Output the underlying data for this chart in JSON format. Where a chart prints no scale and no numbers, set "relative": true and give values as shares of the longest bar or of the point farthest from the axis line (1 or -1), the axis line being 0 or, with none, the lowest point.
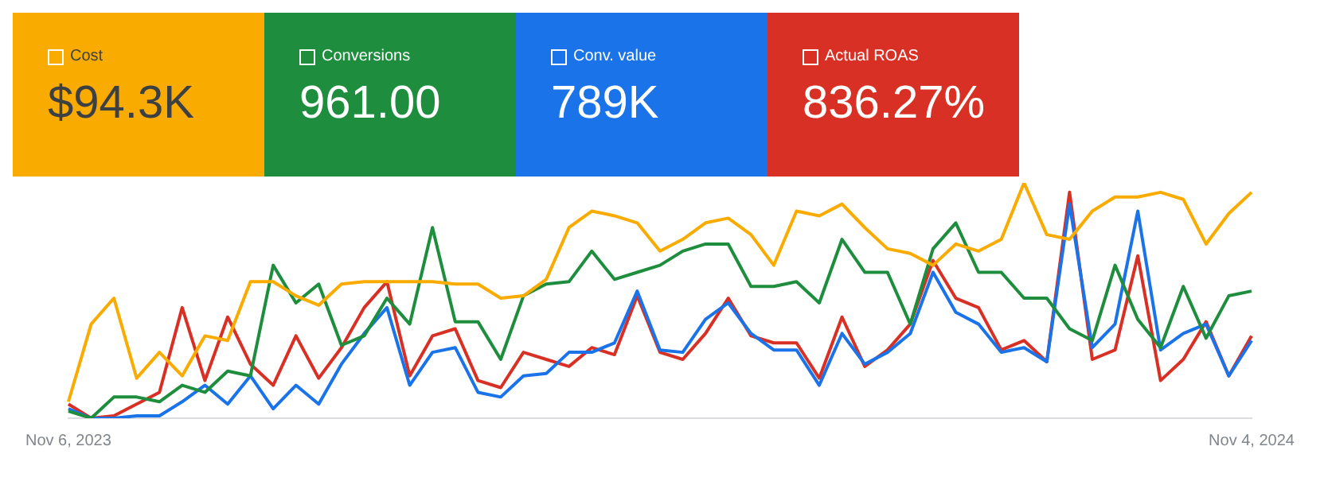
{
  "chart_data": {
    "type": "line",
    "relative": true,
    "legend": "top left",
    "marker": "none",
    "line_style": "solid",
    "annotations": [
      "$94.3K",
      "961.00",
      "789K",
      "836.27%"
    ],
    "categories": [
      "Nov 6, 2023",
      null,
      null,
      null,
      null,
      null,
      null,
      null,
      null,
      null,
      null,
      null,
      null,
      null,
      null,
      null,
      null,
      null,
      null,
      null,
      null,
      null,
      null,
      null,
      null,
      null,
      null,
      null,
      null,
      null,
      null,
      null,
      null,
      null,
      null,
      null,
      null,
      null,
      null,
      null,
      null,
      null,
      null,
      null,
      null,
      null,
      null,
      null,
      null,
      null,
      null,
      null,
      "Nov 4, 2024"
    ],
    "series": [
      {
        "name": "Cost",
        "color": "#f9ab00",
        "values": [
          0.07,
          0.4,
          0.51,
          0.17,
          0.28,
          0.18,
          0.35,
          0.33,
          0.58,
          0.58,
          0.52,
          0.48,
          0.57,
          0.58,
          0.58,
          0.58,
          0.58,
          0.57,
          0.57,
          0.51,
          0.52,
          0.59,
          0.81,
          0.88,
          0.86,
          0.83,
          0.71,
          0.76,
          0.83,
          0.85,
          0.78,
          0.65,
          0.88,
          0.86,
          0.91,
          0.81,
          0.72,
          0.7,
          0.65,
          0.74,
          0.71,
          0.76,
          1,
          0.78,
          0.76,
          0.88,
          0.94,
          0.94,
          0.96,
          0.93,
          0.74,
          0.87,
          0.96
        ]
      },
      {
        "name": "Conversions",
        "color": "#1e8e3e",
        "values": [
          0.03,
          0,
          0.09,
          0.09,
          0.07,
          0.14,
          0.11,
          0.2,
          0.18,
          0.65,
          0.49,
          0.57,
          0.31,
          0.35,
          0.51,
          0.4,
          0.81,
          0.41,
          0.41,
          0.25,
          0.52,
          0.57,
          0.58,
          0.71,
          0.59,
          0.62,
          0.65,
          0.71,
          0.74,
          0.74,
          0.56,
          0.56,
          0.58,
          0.49,
          0.76,
          0.62,
          0.62,
          0.4,
          0.72,
          0.83,
          0.62,
          0.62,
          0.51,
          0.51,
          0.38,
          0.33,
          0.65,
          0.42,
          0.3,
          0.56,
          0.34,
          0.52,
          0.54
        ]
      },
      {
        "name": "Conv. value",
        "color": "#1a73e8",
        "values": [
          0.04,
          0,
          0,
          0.01,
          0.01,
          0.07,
          0.14,
          0.06,
          0.18,
          0.04,
          0.14,
          0.06,
          0.23,
          0.36,
          0.47,
          0.14,
          0.28,
          0.3,
          0.11,
          0.09,
          0.18,
          0.19,
          0.28,
          0.28,
          0.32,
          0.54,
          0.29,
          0.28,
          0.42,
          0.49,
          0.36,
          0.29,
          0.29,
          0.14,
          0.36,
          0.23,
          0.28,
          0.36,
          0.62,
          0.45,
          0.4,
          0.28,
          0.3,
          0.24,
          0.91,
          0.3,
          0.4,
          0.88,
          0.29,
          0.36,
          0.4,
          0.18,
          0.33
        ]
      },
      {
        "name": "Actual ROAS",
        "color": "#d93025",
        "values": [
          0.06,
          0,
          0.01,
          0.06,
          0.11,
          0.47,
          0.16,
          0.43,
          0.23,
          0.14,
          0.35,
          0.17,
          0.3,
          0.47,
          0.58,
          0.18,
          0.35,
          0.38,
          0.16,
          0.13,
          0.28,
          0.25,
          0.22,
          0.3,
          0.27,
          0.52,
          0.28,
          0.25,
          0.36,
          0.51,
          0.35,
          0.32,
          0.32,
          0.17,
          0.43,
          0.22,
          0.29,
          0.4,
          0.67,
          0.51,
          0.47,
          0.29,
          0.33,
          0.24,
          0.96,
          0.25,
          0.29,
          0.69,
          0.16,
          0.25,
          0.41,
          0.18,
          0.35
        ]
      }
    ]
  }
}
